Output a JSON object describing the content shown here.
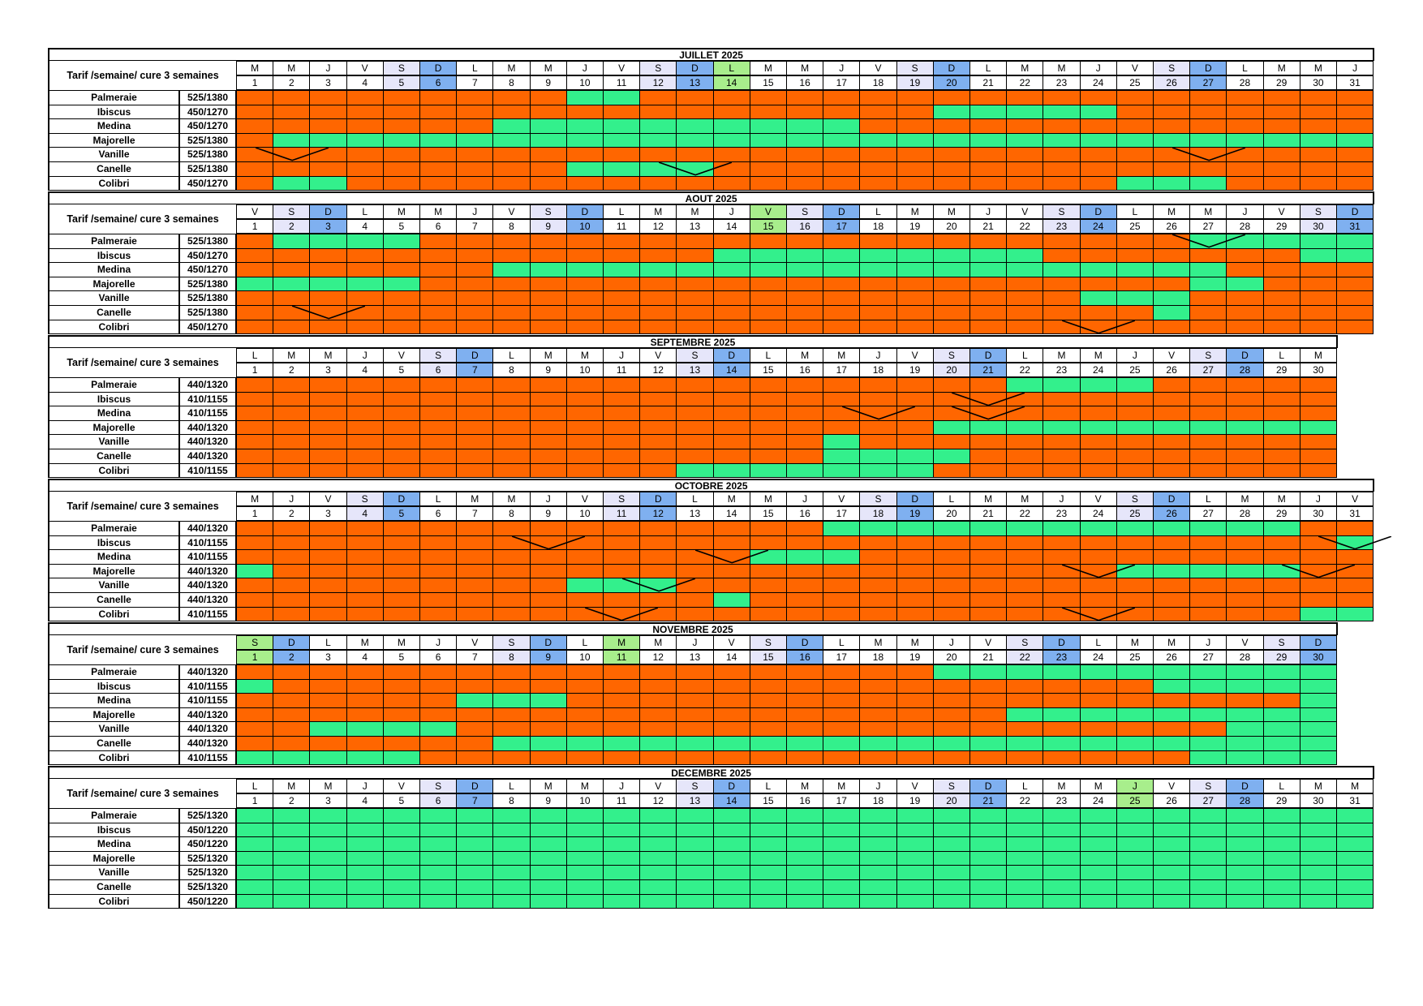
{
  "tarif_label": "Tarif /semaine/ cure 3 semaines",
  "colors": {
    "occupied": "#ff6600",
    "available": "#33f08c",
    "saturday": "#e6e6fa",
    "sunday": "#7fb0f0",
    "holiday": "#a8ee8c"
  },
  "months": [
    {
      "title": "JUILLET 2025",
      "days": [
        "M",
        "M",
        "J",
        "V",
        "S",
        "D",
        "L",
        "M",
        "M",
        "J",
        "V",
        "S",
        "D",
        "L",
        "M",
        "M",
        "J",
        "V",
        "S",
        "D",
        "L",
        "M",
        "M",
        "J",
        "V",
        "S",
        "D",
        "L",
        "M",
        "M",
        "J"
      ],
      "holidays": [
        14
      ],
      "rows": [
        {
          "name": "Palmeraie",
          "price": "525/1380",
          "available": [
            10,
            11
          ],
          "changeovers": []
        },
        {
          "name": "Ibiscus",
          "price": "450/1270",
          "available": [
            20,
            21,
            22,
            23,
            24
          ],
          "changeovers": []
        },
        {
          "name": "Medina",
          "price": "450/1270",
          "available": [
            8,
            9,
            10,
            11,
            12,
            13,
            14,
            15,
            16,
            17
          ],
          "changeovers": []
        },
        {
          "name": "Majorelle",
          "price": "525/1380",
          "available": [
            2,
            3,
            4,
            5,
            6,
            7,
            8,
            9,
            10,
            11,
            12,
            13,
            14,
            15,
            16,
            17,
            18,
            19,
            20,
            21,
            22,
            23,
            24,
            25,
            26,
            27,
            28,
            29,
            30,
            31
          ],
          "changeovers": []
        },
        {
          "name": "Vanille",
          "price": "525/1380",
          "available": [],
          "changeovers": [
            2,
            27
          ]
        },
        {
          "name": "Canelle",
          "price": "525/1380",
          "available": [
            10,
            11,
            12,
            13
          ],
          "changeovers": [
            13
          ]
        },
        {
          "name": "Colibri",
          "price": "450/1270",
          "available": [
            2,
            3,
            25,
            26,
            27
          ],
          "changeovers": []
        }
      ]
    },
    {
      "title": "AOUT 2025",
      "days": [
        "V",
        "S",
        "D",
        "L",
        "M",
        "M",
        "J",
        "V",
        "S",
        "D",
        "L",
        "M",
        "M",
        "J",
        "V",
        "S",
        "D",
        "L",
        "M",
        "M",
        "J",
        "V",
        "S",
        "D",
        "L",
        "M",
        "M",
        "J",
        "V",
        "S",
        "D"
      ],
      "holidays": [
        15
      ],
      "rows": [
        {
          "name": "Palmeraie",
          "price": "525/1380",
          "available": [
            2,
            3,
            4,
            5,
            27,
            28,
            29,
            30,
            31
          ],
          "changeovers": [
            27
          ]
        },
        {
          "name": "Ibiscus",
          "price": "450/1270",
          "available": [
            14,
            15,
            16,
            17,
            18,
            19,
            20,
            21,
            22,
            30,
            31
          ],
          "changeovers": []
        },
        {
          "name": "Medina",
          "price": "450/1270",
          "available": [
            8,
            9,
            10,
            11,
            12,
            13,
            14,
            15,
            16,
            17,
            18,
            19,
            20,
            21,
            22,
            23,
            24,
            25,
            26,
            27
          ],
          "changeovers": []
        },
        {
          "name": "Majorelle",
          "price": "525/1380",
          "available": [
            1,
            2,
            3,
            4,
            5,
            27,
            28
          ],
          "changeovers": []
        },
        {
          "name": "Vanille",
          "price": "525/1380",
          "available": [
            24,
            25,
            26
          ],
          "changeovers": []
        },
        {
          "name": "Canelle",
          "price": "525/1380",
          "available": [
            26
          ],
          "changeovers": [
            3
          ]
        },
        {
          "name": "Colibri",
          "price": "450/1270",
          "available": [],
          "changeovers": [
            24
          ]
        }
      ]
    },
    {
      "title": "SEPTEMBRE 2025",
      "days": [
        "L",
        "M",
        "M",
        "J",
        "V",
        "S",
        "D",
        "L",
        "M",
        "M",
        "J",
        "V",
        "S",
        "D",
        "L",
        "M",
        "M",
        "J",
        "V",
        "S",
        "D",
        "L",
        "M",
        "M",
        "J",
        "V",
        "S",
        "D",
        "L",
        "M"
      ],
      "holidays": [],
      "rows": [
        {
          "name": "Palmeraie",
          "price": "440/1320",
          "available": [
            22,
            23,
            24,
            25
          ],
          "changeovers": []
        },
        {
          "name": "Ibiscus",
          "price": "410/1155",
          "available": [],
          "changeovers": [
            21
          ]
        },
        {
          "name": "Medina",
          "price": "410/1155",
          "available": [],
          "changeovers": [
            18,
            21
          ]
        },
        {
          "name": "Majorelle",
          "price": "440/1320",
          "available": [
            20,
            21,
            22,
            23,
            24,
            25,
            26,
            27,
            28,
            29,
            30
          ],
          "changeovers": []
        },
        {
          "name": "Vanille",
          "price": "440/1320",
          "available": [
            17
          ],
          "changeovers": []
        },
        {
          "name": "Canelle",
          "price": "440/1320",
          "available": [
            17,
            18,
            19,
            20
          ],
          "changeovers": []
        },
        {
          "name": "Colibri",
          "price": "410/1155",
          "available": [
            13,
            14,
            15,
            16,
            17,
            18,
            19
          ],
          "changeovers": []
        }
      ]
    },
    {
      "title": "OCTOBRE 2025",
      "days": [
        "M",
        "J",
        "V",
        "S",
        "D",
        "L",
        "M",
        "M",
        "J",
        "V",
        "S",
        "D",
        "L",
        "M",
        "M",
        "J",
        "V",
        "S",
        "D",
        "L",
        "M",
        "M",
        "J",
        "V",
        "S",
        "D",
        "L",
        "M",
        "M",
        "J",
        "V"
      ],
      "holidays": [],
      "rows": [
        {
          "name": "Palmeraie",
          "price": "440/1320",
          "available": [
            17,
            18,
            19,
            20,
            21,
            22,
            23,
            24,
            25,
            26,
            27,
            28,
            29
          ],
          "changeovers": []
        },
        {
          "name": "Ibiscus",
          "price": "410/1155",
          "available": [
            31
          ],
          "changeovers": [
            9,
            31
          ]
        },
        {
          "name": "Medina",
          "price": "410/1155",
          "available": [
            15,
            16,
            17
          ],
          "changeovers": [
            14
          ]
        },
        {
          "name": "Majorelle",
          "price": "440/1320",
          "available": [
            1,
            25,
            26,
            27,
            28,
            29
          ],
          "changeovers": [
            24,
            30
          ]
        },
        {
          "name": "Vanille",
          "price": "440/1320",
          "available": [
            10,
            11,
            12
          ],
          "changeovers": [
            12
          ]
        },
        {
          "name": "Canelle",
          "price": "440/1320",
          "available": [
            14
          ],
          "changeovers": []
        },
        {
          "name": "Colibri",
          "price": "410/1155",
          "available": [
            30,
            31
          ],
          "changeovers": [
            11,
            24
          ]
        }
      ]
    },
    {
      "title": "NOVEMBRE 2025",
      "days": [
        "S",
        "D",
        "L",
        "M",
        "M",
        "J",
        "V",
        "S",
        "D",
        "L",
        "M",
        "M",
        "J",
        "V",
        "S",
        "D",
        "L",
        "M",
        "M",
        "J",
        "V",
        "S",
        "D",
        "L",
        "M",
        "M",
        "J",
        "V",
        "S",
        "D"
      ],
      "holidays": [
        1,
        11
      ],
      "rows": [
        {
          "name": "Palmeraie",
          "price": "440/1320",
          "available": [
            20,
            21,
            22,
            23,
            24,
            25,
            26,
            27,
            28,
            29,
            30
          ],
          "changeovers": []
        },
        {
          "name": "Ibiscus",
          "price": "410/1155",
          "available": [
            1,
            26,
            27,
            28,
            29,
            30
          ],
          "changeovers": []
        },
        {
          "name": "Medina",
          "price": "410/1155",
          "available": [
            7,
            8,
            9,
            30
          ],
          "changeovers": []
        },
        {
          "name": "Majorelle",
          "price": "440/1320",
          "available": [
            22,
            23,
            24,
            25,
            26,
            27,
            28,
            29,
            30
          ],
          "changeovers": []
        },
        {
          "name": "Vanille",
          "price": "440/1320",
          "available": [
            3,
            4,
            5,
            6,
            28,
            29,
            30
          ],
          "changeovers": []
        },
        {
          "name": "Canelle",
          "price": "440/1320",
          "available": [
            8,
            9,
            10,
            11,
            12,
            13,
            14,
            15,
            16,
            17,
            18,
            19,
            20,
            21,
            22,
            23,
            24,
            25,
            26,
            27,
            28,
            29,
            30
          ],
          "changeovers": []
        },
        {
          "name": "Colibri",
          "price": "410/1155",
          "available": [
            1,
            2,
            3,
            4,
            5,
            27,
            28,
            29,
            30
          ],
          "changeovers": []
        }
      ]
    },
    {
      "title": "DECEMBRE 2025",
      "days": [
        "L",
        "M",
        "M",
        "J",
        "V",
        "S",
        "D",
        "L",
        "M",
        "M",
        "J",
        "V",
        "S",
        "D",
        "L",
        "M",
        "M",
        "J",
        "V",
        "S",
        "D",
        "L",
        "M",
        "M",
        "J",
        "V",
        "S",
        "D",
        "L",
        "M",
        "M"
      ],
      "holidays": [
        25
      ],
      "rows": [
        {
          "name": "Palmeraie",
          "price": "525/1320",
          "available": "all",
          "changeovers": []
        },
        {
          "name": "Ibiscus",
          "price": "450/1220",
          "available": "all",
          "changeovers": []
        },
        {
          "name": "Medina",
          "price": "450/1220",
          "available": "all",
          "changeovers": []
        },
        {
          "name": "Majorelle",
          "price": "525/1320",
          "available": "all",
          "changeovers": []
        },
        {
          "name": "Vanille",
          "price": "525/1320",
          "available": "all",
          "changeovers": []
        },
        {
          "name": "Canelle",
          "price": "525/1320",
          "available": "all",
          "changeovers": []
        },
        {
          "name": "Colibri",
          "price": "450/1220",
          "available": "all",
          "changeovers": []
        }
      ]
    }
  ]
}
